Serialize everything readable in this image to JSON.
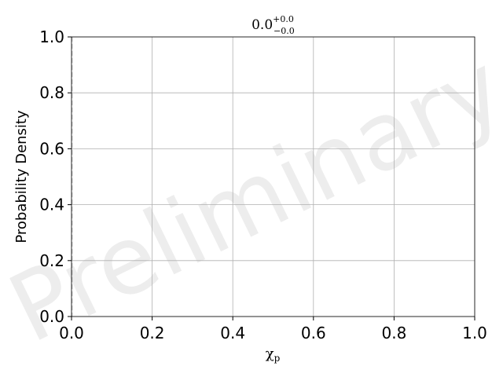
{
  "chart_data": {
    "type": "line",
    "title": {
      "value": "0.0",
      "upper": "+0.0",
      "lower": "−0.0"
    },
    "xlabel": {
      "symbol": "χ",
      "subscript": "p"
    },
    "ylabel": "Probability Density",
    "xlim": [
      0.0,
      1.0
    ],
    "ylim": [
      0.0,
      1.0
    ],
    "xticks": [
      "0.0",
      "0.2",
      "0.4",
      "0.6",
      "0.8",
      "1.0"
    ],
    "yticks": [
      "0.0",
      "0.2",
      "0.4",
      "0.6",
      "0.8",
      "1.0"
    ],
    "grid": true,
    "series": [],
    "reference_lines": [
      {
        "orientation": "vertical",
        "x": 0.0,
        "style": "dashed",
        "color": "#bbbbbb"
      }
    ],
    "watermark": "Preliminary"
  }
}
